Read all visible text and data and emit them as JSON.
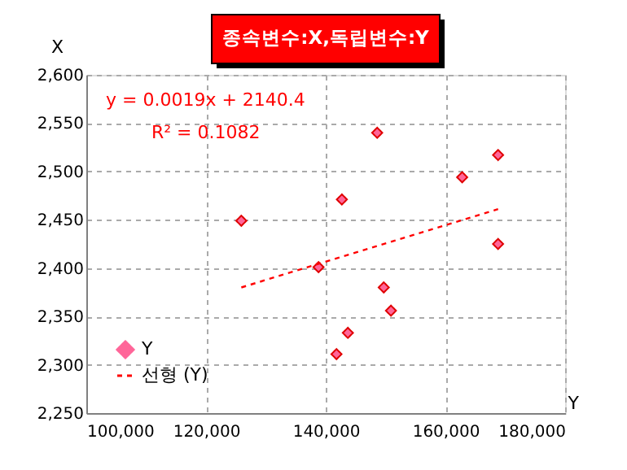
{
  "chart_data": {
    "type": "scatter",
    "title": "종속변수:X,독립변수:Y",
    "xlabel": "Y",
    "ylabel": "X",
    "series": [
      {
        "name": "Y",
        "color": "#ff6699",
        "marker": "diamond",
        "x": [
          148600,
          168800,
          162800,
          142700,
          125900,
          168800,
          138800,
          149700,
          150900,
          143700,
          141800
        ],
        "values": [
          2540,
          2517,
          2494,
          2471,
          2449,
          2425,
          2401,
          2380,
          2356,
          2333,
          2311
        ]
      },
      {
        "name": "선형 (Y)",
        "type": "line",
        "color": "#ff0000",
        "line_style": "dashed",
        "x": [
          125900,
          168800
        ],
        "values": [
          2380,
          2461
        ]
      }
    ],
    "annotations": [
      "y = 0.0019x + 2140.4",
      "R² = 0.1082"
    ],
    "xlim": [
      100000,
      180000
    ],
    "xticks": [
      {
        "value": 100000,
        "label": "100,000"
      },
      {
        "value": 120000,
        "label": "120,000"
      },
      {
        "value": 140000,
        "label": "140,000"
      },
      {
        "value": 160000,
        "label": "160,000"
      },
      {
        "value": 180000,
        "label": "180,000"
      }
    ],
    "ylim": [
      2250,
      2600
    ],
    "yticks": [
      {
        "value": 2250,
        "label": "2,250"
      },
      {
        "value": 2300,
        "label": "2,300"
      },
      {
        "value": 2350,
        "label": "2,350"
      },
      {
        "value": 2400,
        "label": "2,400"
      },
      {
        "value": 2450,
        "label": "2,450"
      },
      {
        "value": 2500,
        "label": "2,500"
      },
      {
        "value": 2550,
        "label": "2,550"
      },
      {
        "value": 2600,
        "label": "2,600"
      }
    ],
    "grid": true,
    "legend": "bottom left"
  }
}
